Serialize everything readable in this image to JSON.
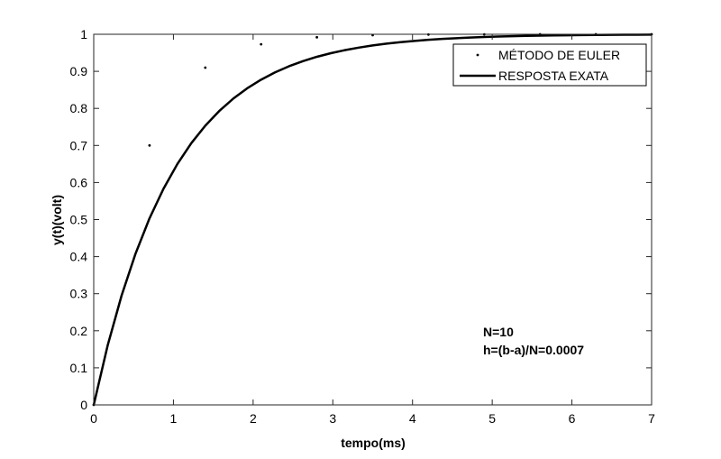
{
  "chart_data": {
    "type": "line",
    "xlabel": "tempo(ms)",
    "ylabel": "y(t)(volt)",
    "xlim": [
      0,
      7
    ],
    "ylim": [
      0,
      1
    ],
    "x_ticks": [
      0,
      1,
      2,
      3,
      4,
      5,
      6,
      7
    ],
    "x_tick_labels": [
      "0",
      "1",
      "2",
      "3",
      "4",
      "5",
      "6",
      "7"
    ],
    "y_ticks": [
      0,
      0.1,
      0.2,
      0.3,
      0.4,
      0.5,
      0.6,
      0.7,
      0.8,
      0.9,
      1
    ],
    "y_tick_labels": [
      "0",
      "0.1",
      "0.2",
      "0.3",
      "0.4",
      "0.5",
      "0.6",
      "0.7",
      "0.8",
      "0.9",
      "1"
    ],
    "grid": false,
    "legend_placement": "top-right",
    "series": [
      {
        "name": "MÉTODO DE EULER",
        "style": "points",
        "color": "#000000",
        "x": [
          0,
          0.7,
          1.4,
          2.1,
          2.8,
          3.5,
          4.2,
          4.9,
          5.6,
          6.3,
          7.0
        ],
        "y": [
          0,
          0.7,
          0.91,
          0.973,
          0.9919,
          0.99757,
          0.99927,
          0.99978,
          0.99993,
          0.99998,
          0.99999
        ]
      },
      {
        "name": "RESPOSTA EXATA",
        "style": "line",
        "color": "#000000",
        "x": [
          0,
          0.175,
          0.35,
          0.525,
          0.7,
          0.875,
          1.05,
          1.225,
          1.4,
          1.575,
          1.75,
          1.925,
          2.1,
          2.275,
          2.45,
          2.625,
          2.8,
          2.975,
          3.15,
          3.325,
          3.5,
          3.675,
          3.85,
          4.025,
          4.2,
          4.375,
          4.55,
          4.725,
          4.9,
          5.075,
          5.25,
          5.425,
          5.6,
          5.775,
          5.95,
          6.125,
          6.3,
          6.475,
          6.65,
          6.825,
          7.0
        ],
        "y": [
          0,
          0.1606,
          0.2953,
          0.4084,
          0.5034,
          0.5831,
          0.6501,
          0.7063,
          0.7534,
          0.793,
          0.8262,
          0.8541,
          0.8775,
          0.8972,
          0.9137,
          0.9275,
          0.9392,
          0.9489,
          0.9571,
          0.964,
          0.9698,
          0.9747,
          0.9787,
          0.9822,
          0.985,
          0.9874,
          0.9894,
          0.9911,
          0.9926,
          0.9938,
          0.9948,
          0.9956,
          0.9963,
          0.9969,
          0.9974,
          0.9978,
          0.9982,
          0.9985,
          0.9987,
          0.9989,
          0.9991
        ]
      }
    ],
    "annotations": [
      "N=10",
      "h=(b-a)/N=0.0007"
    ]
  }
}
